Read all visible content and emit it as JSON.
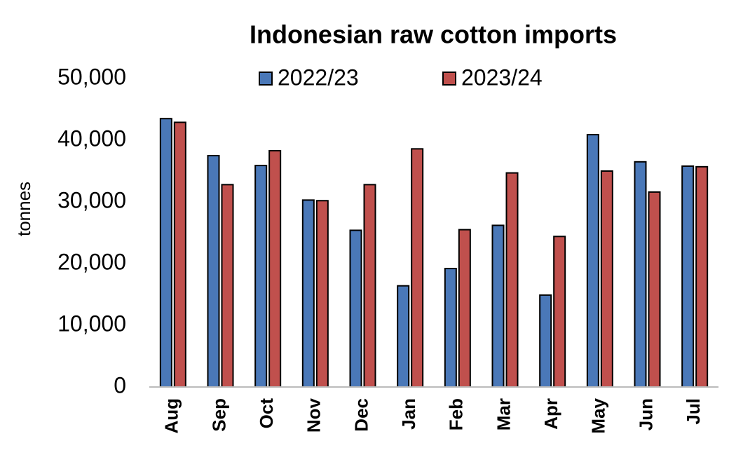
{
  "chart_data": {
    "type": "bar",
    "title": "Indonesian raw cotton imports",
    "y_label": "tonnes",
    "categories": [
      "Aug",
      "Sep",
      "Oct",
      "Nov",
      "Dec",
      "Jan",
      "Feb",
      "Mar",
      "Apr",
      "May",
      "Jun",
      "Jul"
    ],
    "series": [
      {
        "name": "2022/23",
        "color": "#4a78b8",
        "values": [
          43500,
          37500,
          35900,
          30300,
          25400,
          16400,
          19200,
          26200,
          14900,
          40900,
          36500,
          35800
        ]
      },
      {
        "name": "2023/24",
        "color": "#c0504d",
        "values": [
          42900,
          32800,
          38300,
          30200,
          32800,
          38600,
          25500,
          34700,
          24400,
          35000,
          31600,
          35700
        ]
      }
    ],
    "ylim": [
      0,
      50000
    ],
    "yticks": [
      0,
      {
        "value": 10000,
        "label": "10,000"
      },
      {
        "value": 20000,
        "label": "20,000"
      },
      {
        "value": 30000,
        "label": "30,000"
      },
      {
        "value": 40000,
        "label": "40,000"
      },
      {
        "value": 50000,
        "label": "50,000"
      }
    ],
    "legend": "top",
    "grid": false
  }
}
